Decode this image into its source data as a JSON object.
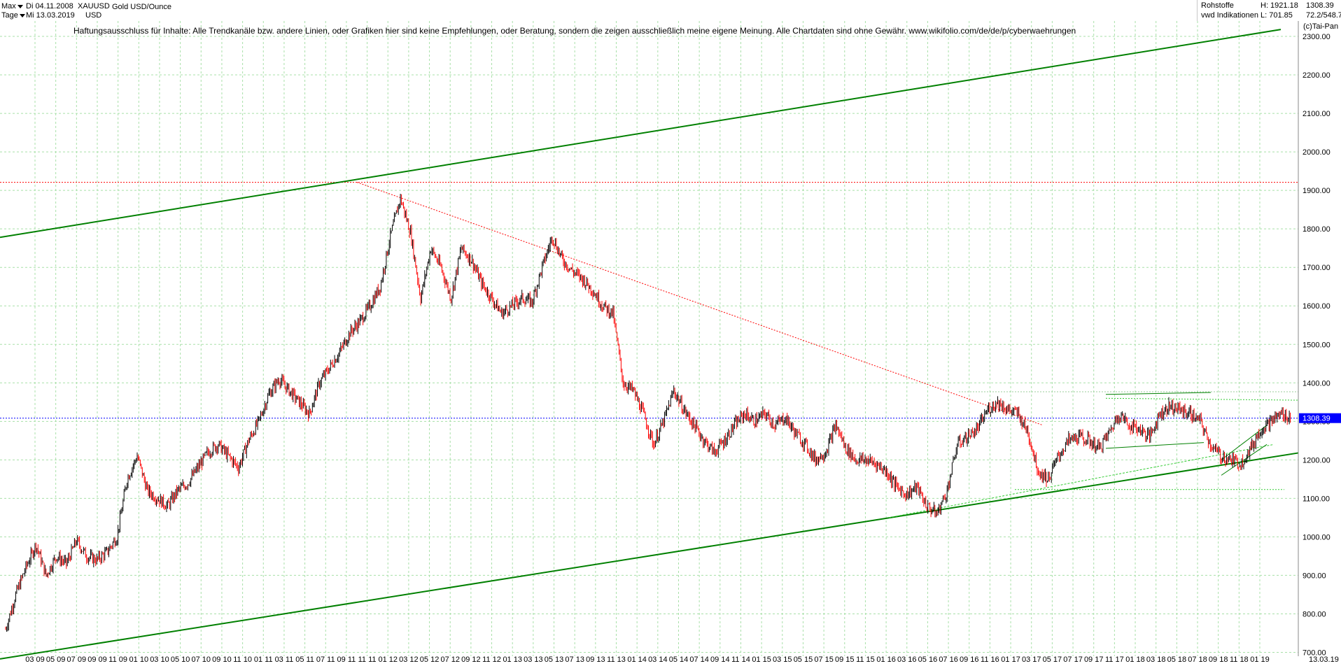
{
  "header": {
    "range_label": "Max",
    "interval_label": "Tage",
    "start_date": "Di 04.11.2008",
    "end_date": "Mi 13.03.2019",
    "symbol": "XAUUSD",
    "currency": "USD",
    "instrument": "Gold USD/Ounce",
    "category": "Rohstoffe",
    "source": "vwd Indikationen",
    "high": "H: 1921.18",
    "low": "L: 701.85",
    "last": "1308.39",
    "ratio": "72.2/548.7",
    "copyright": "(c)Tai-Pan"
  },
  "disclaimer": "Haftungsausschluss für Inhalte: Alle Trendkanäle bzw. andere Linien, oder Grafiken hier sind keine Empfehlungen, oder Beratung, sondern die zeigen ausschließlich meine eigene Meinung. Alle Chartdaten sind ohne Gewähr.  www.wikifolio.com/de/de/p/cyberwaehrungen",
  "colors": {
    "up": "#000000",
    "down": "#ff0000",
    "trend": "#008000",
    "trend_light": "#33cc33",
    "resistance": "#ff0000",
    "last_price": "#0000ff",
    "grid": "#a8e0a8"
  },
  "chart_data": {
    "type": "line",
    "title": "Gold USD/Ounce",
    "ylim": [
      690,
      2340
    ],
    "y_ticks": [
      700,
      800,
      900,
      1000,
      1100,
      1200,
      1300,
      1400,
      1500,
      1600,
      1700,
      1800,
      1900,
      2000,
      2100,
      2200,
      2300
    ],
    "y_tick_labels": [
      "700.00",
      "800.00",
      "900.00",
      "1000.00",
      "1100.00",
      "1200.00",
      "1300.00",
      "1400.00",
      "1500.00",
      "1600.00",
      "1700.00",
      "1800.00",
      "1900.00",
      "2000.00",
      "2100.00",
      "2200.00",
      "2300.00"
    ],
    "x_tick_labels": [
      "03",
      "09",
      "05",
      "09",
      "07",
      "09",
      "09",
      "09",
      "11",
      "09",
      "01",
      "10",
      "03",
      "10",
      "05",
      "10",
      "07",
      "10",
      "09",
      "10",
      "11",
      "10",
      "01",
      "11",
      "03",
      "11",
      "05",
      "11",
      "07",
      "11",
      "09",
      "11",
      "11",
      "11",
      "01",
      "12",
      "03",
      "12",
      "05",
      "12",
      "07",
      "12",
      "09",
      "12",
      "11",
      "12",
      "01",
      "13",
      "03",
      "13",
      "05",
      "13",
      "07",
      "13",
      "09",
      "13",
      "11",
      "13",
      "01",
      "14",
      "03",
      "14",
      "05",
      "14",
      "07",
      "14",
      "09",
      "14",
      "11",
      "14",
      "01",
      "15",
      "03",
      "15",
      "05",
      "15",
      "07",
      "15",
      "09",
      "15",
      "11",
      "15",
      "01",
      "16",
      "03",
      "16",
      "05",
      "16",
      "07",
      "16",
      "09",
      "16",
      "11",
      "16",
      "01",
      "17",
      "03",
      "17",
      "05",
      "17",
      "07",
      "17",
      "09",
      "17",
      "11",
      "17",
      "01",
      "18",
      "03",
      "18",
      "05",
      "18",
      "07",
      "18",
      "09",
      "18",
      "11",
      "18",
      "01",
      "19"
    ],
    "end_label": "13.03.19",
    "last_value": 1308.39,
    "last_value_label": "1308.39",
    "resistance_level": 1921,
    "x_unit": "months since Nov 2008",
    "series": [
      {
        "points": [
          [
            0,
            760
          ],
          [
            1,
            850
          ],
          [
            2,
            920
          ],
          [
            3,
            980
          ],
          [
            4,
            900
          ],
          [
            5,
            950
          ],
          [
            6,
            930
          ],
          [
            7,
            990
          ],
          [
            8,
            950
          ],
          [
            9,
            940
          ],
          [
            10,
            960
          ],
          [
            11,
            1000
          ],
          [
            12,
            1150
          ],
          [
            13,
            1210
          ],
          [
            14,
            1120
          ],
          [
            15,
            1100
          ],
          [
            16,
            1080
          ],
          [
            17,
            1120
          ],
          [
            18,
            1140
          ],
          [
            19,
            1180
          ],
          [
            20,
            1220
          ],
          [
            21,
            1240
          ],
          [
            22,
            1210
          ],
          [
            23,
            1180
          ],
          [
            24,
            1250
          ],
          [
            25,
            1300
          ],
          [
            26,
            1370
          ],
          [
            27,
            1410
          ],
          [
            28,
            1380
          ],
          [
            29,
            1350
          ],
          [
            30,
            1320
          ],
          [
            31,
            1400
          ],
          [
            32,
            1440
          ],
          [
            33,
            1480
          ],
          [
            34,
            1530
          ],
          [
            35,
            1560
          ],
          [
            36,
            1600
          ],
          [
            37,
            1650
          ],
          [
            38,
            1780
          ],
          [
            39,
            1880
          ],
          [
            40,
            1790
          ],
          [
            41,
            1620
          ],
          [
            42,
            1750
          ],
          [
            43,
            1700
          ],
          [
            44,
            1620
          ],
          [
            45,
            1750
          ],
          [
            46,
            1720
          ],
          [
            47,
            1660
          ],
          [
            48,
            1620
          ],
          [
            49,
            1580
          ],
          [
            50,
            1600
          ],
          [
            51,
            1620
          ],
          [
            52,
            1610
          ],
          [
            53,
            1700
          ],
          [
            54,
            1780
          ],
          [
            55,
            1720
          ],
          [
            56,
            1690
          ],
          [
            57,
            1670
          ],
          [
            58,
            1640
          ],
          [
            59,
            1600
          ],
          [
            60,
            1580
          ],
          [
            61,
            1400
          ],
          [
            62,
            1380
          ],
          [
            63,
            1320
          ],
          [
            64,
            1240
          ],
          [
            65,
            1300
          ],
          [
            66,
            1380
          ],
          [
            67,
            1330
          ],
          [
            68,
            1290
          ],
          [
            69,
            1250
          ],
          [
            70,
            1220
          ],
          [
            71,
            1250
          ],
          [
            72,
            1290
          ],
          [
            73,
            1320
          ],
          [
            74,
            1300
          ],
          [
            75,
            1320
          ],
          [
            76,
            1290
          ],
          [
            77,
            1310
          ],
          [
            78,
            1270
          ],
          [
            79,
            1240
          ],
          [
            80,
            1200
          ],
          [
            81,
            1220
          ],
          [
            82,
            1290
          ],
          [
            83,
            1230
          ],
          [
            84,
            1200
          ],
          [
            85,
            1200
          ],
          [
            86,
            1190
          ],
          [
            87,
            1170
          ],
          [
            88,
            1130
          ],
          [
            89,
            1110
          ],
          [
            90,
            1130
          ],
          [
            91,
            1080
          ],
          [
            92,
            1060
          ],
          [
            93,
            1120
          ],
          [
            94,
            1240
          ],
          [
            95,
            1260
          ],
          [
            96,
            1280
          ],
          [
            97,
            1330
          ],
          [
            98,
            1350
          ],
          [
            99,
            1330
          ],
          [
            100,
            1320
          ],
          [
            101,
            1270
          ],
          [
            102,
            1170
          ],
          [
            103,
            1150
          ],
          [
            104,
            1210
          ],
          [
            105,
            1250
          ],
          [
            106,
            1260
          ],
          [
            107,
            1250
          ],
          [
            108,
            1230
          ],
          [
            109,
            1270
          ],
          [
            110,
            1320
          ],
          [
            111,
            1290
          ],
          [
            112,
            1280
          ],
          [
            113,
            1260
          ],
          [
            114,
            1320
          ],
          [
            115,
            1340
          ],
          [
            116,
            1330
          ],
          [
            117,
            1320
          ],
          [
            118,
            1300
          ],
          [
            119,
            1240
          ],
          [
            120,
            1210
          ],
          [
            121,
            1200
          ],
          [
            122,
            1190
          ],
          [
            123,
            1230
          ],
          [
            124,
            1280
          ],
          [
            125,
            1300
          ],
          [
            126,
            1320
          ],
          [
            127,
            1308
          ]
        ]
      }
    ]
  }
}
